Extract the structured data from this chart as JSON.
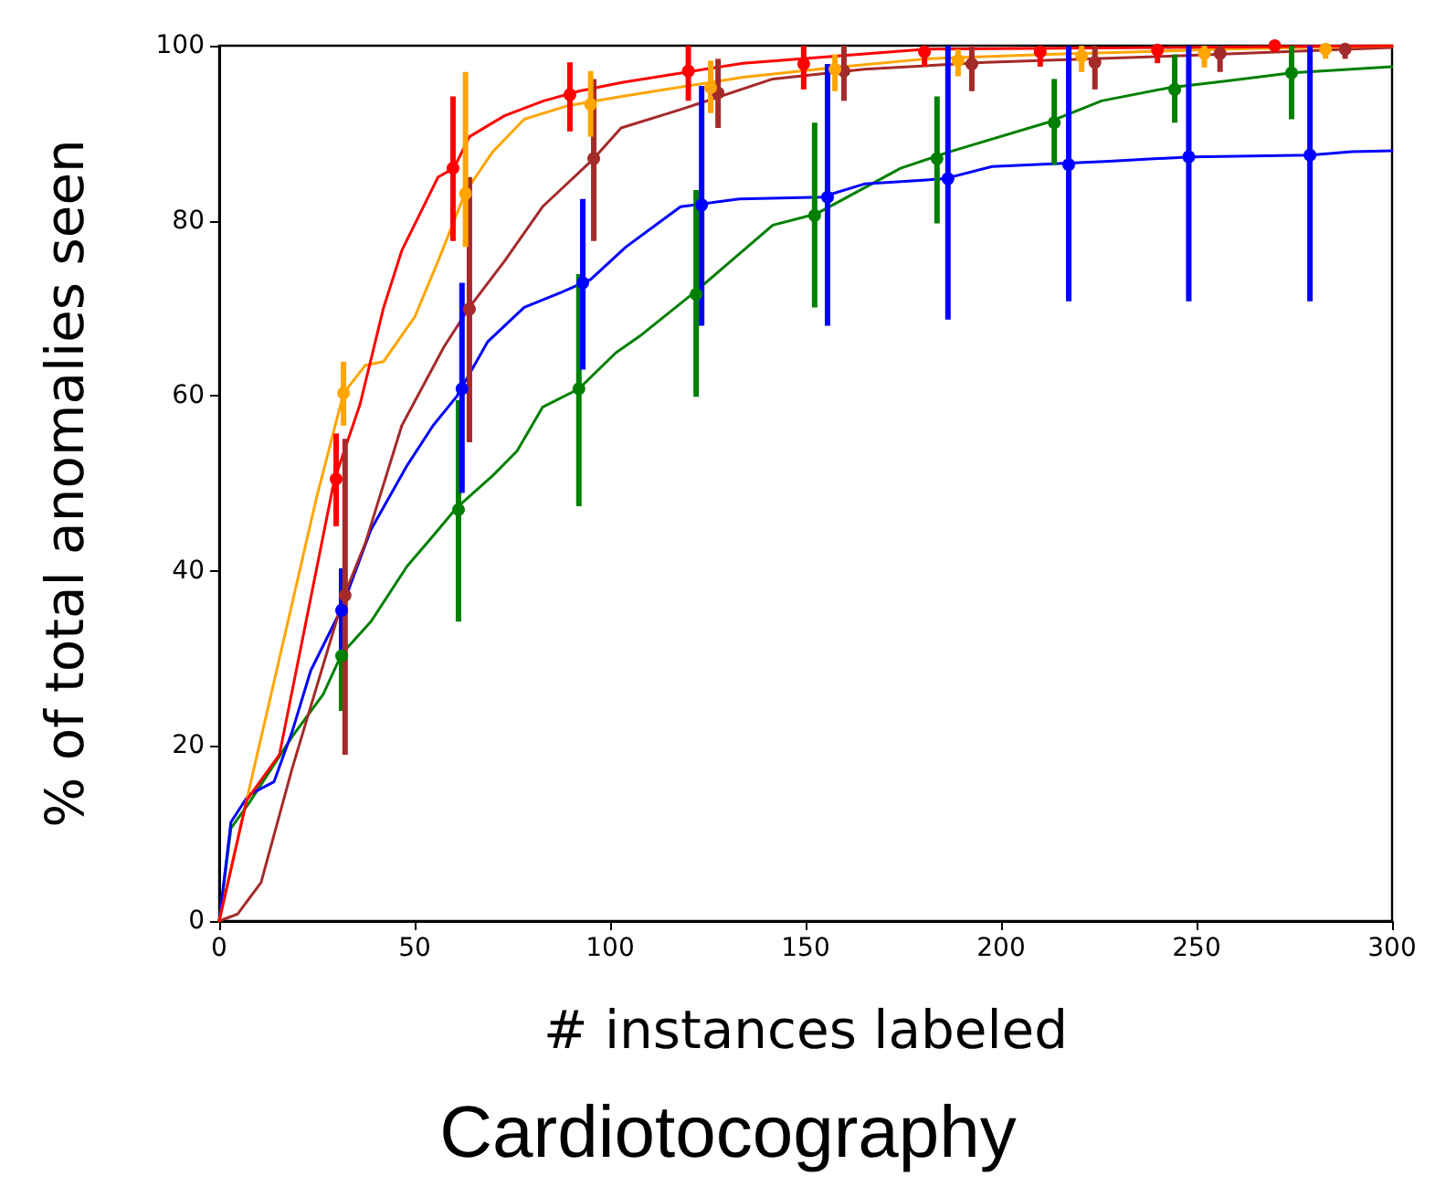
{
  "chart_data": {
    "type": "line",
    "xlabel": "# instances labeled",
    "ylabel": "% of total anomalies seen",
    "annotations": [
      "Cardiotocography"
    ],
    "xlim": [
      0,
      300
    ],
    "ylim": [
      0,
      100
    ],
    "xticks": [
      0,
      50,
      100,
      150,
      200,
      250,
      300
    ],
    "yticks": [
      0,
      20,
      40,
      60,
      80,
      100
    ],
    "series": [
      {
        "color": "#008000",
        "marker": "none",
        "x": [
          0,
          3,
          7.5,
          12.6,
          18.7,
          26.6,
          31.3,
          38.8,
          48,
          54.7,
          60.7,
          70,
          76.2,
          82.7,
          92,
          101.4,
          107.5,
          121.5,
          141.6,
          152.8,
          174.3,
          187,
          211.7,
          225.7,
          243,
          258.4,
          274.3,
          300
        ],
        "values": [
          0,
          10.6,
          13.4,
          16.9,
          21.1,
          25.9,
          30.5,
          34.2,
          40.5,
          44,
          47.2,
          50.9,
          53.7,
          58.7,
          60.8,
          64.9,
          66.8,
          71.8,
          79.5,
          80.8,
          86,
          87.9,
          91.2,
          93.7,
          95.2,
          96,
          96.9,
          97.6
        ]
      },
      {
        "color": "#0000ff",
        "marker": "none",
        "x": [
          0,
          3,
          7.5,
          14,
          18.7,
          23.4,
          31.3,
          38.8,
          48,
          54.7,
          60.7,
          68.7,
          78,
          87.4,
          95,
          104,
          118,
          133,
          154,
          165,
          185.5,
          197.7,
          227.6,
          248.6,
          279,
          289.7,
          300
        ],
        "values": [
          0,
          11.3,
          14.4,
          15.9,
          21.7,
          28.6,
          35.7,
          44.7,
          52,
          56.6,
          59.9,
          66.2,
          70.1,
          71.8,
          73.3,
          77,
          81.6,
          82.5,
          82.7,
          84.2,
          84.8,
          86.2,
          86.8,
          87.3,
          87.5,
          87.9,
          88
        ]
      },
      {
        "color": "#a52a2a",
        "marker": "none",
        "x": [
          0,
          4.7,
          10.7,
          18.7,
          31.8,
          37.4,
          46.7,
          57.5,
          64,
          73,
          82.7,
          95.8,
          102.8,
          118,
          141.6,
          165,
          196,
          243,
          300
        ],
        "values": [
          0,
          0.8,
          4.4,
          17.5,
          37,
          43.2,
          56.6,
          65.6,
          70.1,
          75.4,
          81.6,
          87.1,
          90.6,
          92.7,
          96.2,
          97.3,
          98.1,
          98.8,
          99.8
        ]
      },
      {
        "color": "#ffa500",
        "marker": "none",
        "x": [
          0,
          7,
          14,
          24.8,
          31.8,
          37.4,
          42,
          50,
          56,
          63,
          70,
          78,
          88.8,
          103,
          134,
          157,
          181,
          212,
          258,
          300
        ],
        "values": [
          0,
          13.8,
          27.3,
          48.2,
          60.3,
          63.5,
          63.9,
          69,
          75.4,
          83.3,
          87.9,
          91.6,
          93.1,
          94.2,
          96.4,
          97.5,
          98.5,
          99,
          99.6,
          100
        ]
      },
      {
        "color": "#ff0000",
        "marker": "none",
        "x": [
          0,
          7,
          15.4,
          29.4,
          36,
          42,
          46.7,
          56,
          60,
          64,
          73,
          83,
          92,
          103,
          134,
          181,
          243,
          300
        ],
        "values": [
          0,
          13.8,
          19,
          50.3,
          59,
          70,
          76.6,
          85,
          86,
          89.6,
          92,
          93.7,
          94.8,
          95.8,
          98,
          99.6,
          99.8,
          100
        ]
      },
      {
        "type": "scatter",
        "color": "#008000",
        "marker": "circle",
        "x": [
          31.3,
          61.2,
          92,
          122,
          152.3,
          183.6,
          213.6,
          244.4,
          274.3
        ],
        "values": [
          30.3,
          47,
          60.8,
          71.6,
          80.6,
          87.1,
          91.2,
          95,
          96.9
        ],
        "errors": [
          [
            24,
            40
          ],
          [
            34.2,
            59.5
          ],
          [
            47.4,
            73.9
          ],
          [
            59.9,
            83.5
          ],
          [
            70.1,
            91.2
          ],
          [
            79.7,
            94.2
          ],
          [
            86.4,
            96.2
          ],
          [
            91.2,
            99
          ],
          [
            91.6,
            100
          ]
        ]
      },
      {
        "type": "scatter",
        "color": "#0000ff",
        "marker": "circle",
        "x": [
          31.3,
          62.1,
          93,
          123.4,
          155.6,
          186.4,
          217.3,
          248,
          279
        ],
        "values": [
          35.5,
          60.8,
          72.9,
          81.8,
          82.7,
          84.8,
          86.4,
          87.3,
          87.5
        ],
        "errors": [
          [
            31,
            40.3
          ],
          [
            48.9,
            72.9
          ],
          [
            63,
            82.5
          ],
          [
            68,
            95.4
          ],
          [
            68,
            97.9
          ],
          [
            68.7,
            100
          ],
          [
            70.8,
            100
          ],
          [
            70.8,
            100
          ],
          [
            70.8,
            100
          ]
        ]
      },
      {
        "type": "scatter",
        "color": "#a52a2a",
        "marker": "circle",
        "x": [
          32.2,
          64,
          95.8,
          127.6,
          159.8,
          192.5,
          224,
          256,
          288
        ],
        "values": [
          37.2,
          69.9,
          87.1,
          94.6,
          97.1,
          97.9,
          98.1,
          99.1,
          99.6
        ],
        "errors": [
          [
            19,
            55.1
          ],
          [
            54.7,
            85
          ],
          [
            77.7,
            96.2
          ],
          [
            90.6,
            98.5
          ],
          [
            93.7,
            100
          ],
          [
            94.8,
            100
          ],
          [
            95,
            100
          ],
          [
            97,
            100
          ],
          [
            98.5,
            100
          ]
        ]
      },
      {
        "type": "scatter",
        "color": "#ffa500",
        "marker": "circle",
        "x": [
          31.8,
          63,
          95,
          125.7,
          157.5,
          189,
          220.6,
          252,
          283
        ],
        "values": [
          60.3,
          83.1,
          93.3,
          95.2,
          97.3,
          98.3,
          98.8,
          99.1,
          99.6
        ],
        "errors": [
          [
            56.6,
            63.9
          ],
          [
            77,
            97
          ],
          [
            89.6,
            97.1
          ],
          [
            92.3,
            98.3
          ],
          [
            94.8,
            99
          ],
          [
            96.5,
            99.6
          ],
          [
            97,
            100
          ],
          [
            97.5,
            100
          ],
          [
            98.5,
            100
          ]
        ]
      },
      {
        "type": "scatter",
        "color": "#ff0000",
        "marker": "circle",
        "x": [
          29.9,
          59.8,
          89.7,
          120,
          149.5,
          180.4,
          210,
          240,
          270
        ],
        "values": [
          50.5,
          86,
          94.4,
          97.1,
          97.9,
          99.3,
          99.3,
          99.5,
          100
        ],
        "errors": [
          [
            45.1,
            55.7
          ],
          [
            77.7,
            94.2
          ],
          [
            90.2,
            98.1
          ],
          [
            93.7,
            100
          ],
          [
            95,
            100
          ],
          [
            97.6,
            100
          ],
          [
            97.6,
            100
          ],
          [
            98,
            100
          ],
          null
        ]
      }
    ]
  }
}
